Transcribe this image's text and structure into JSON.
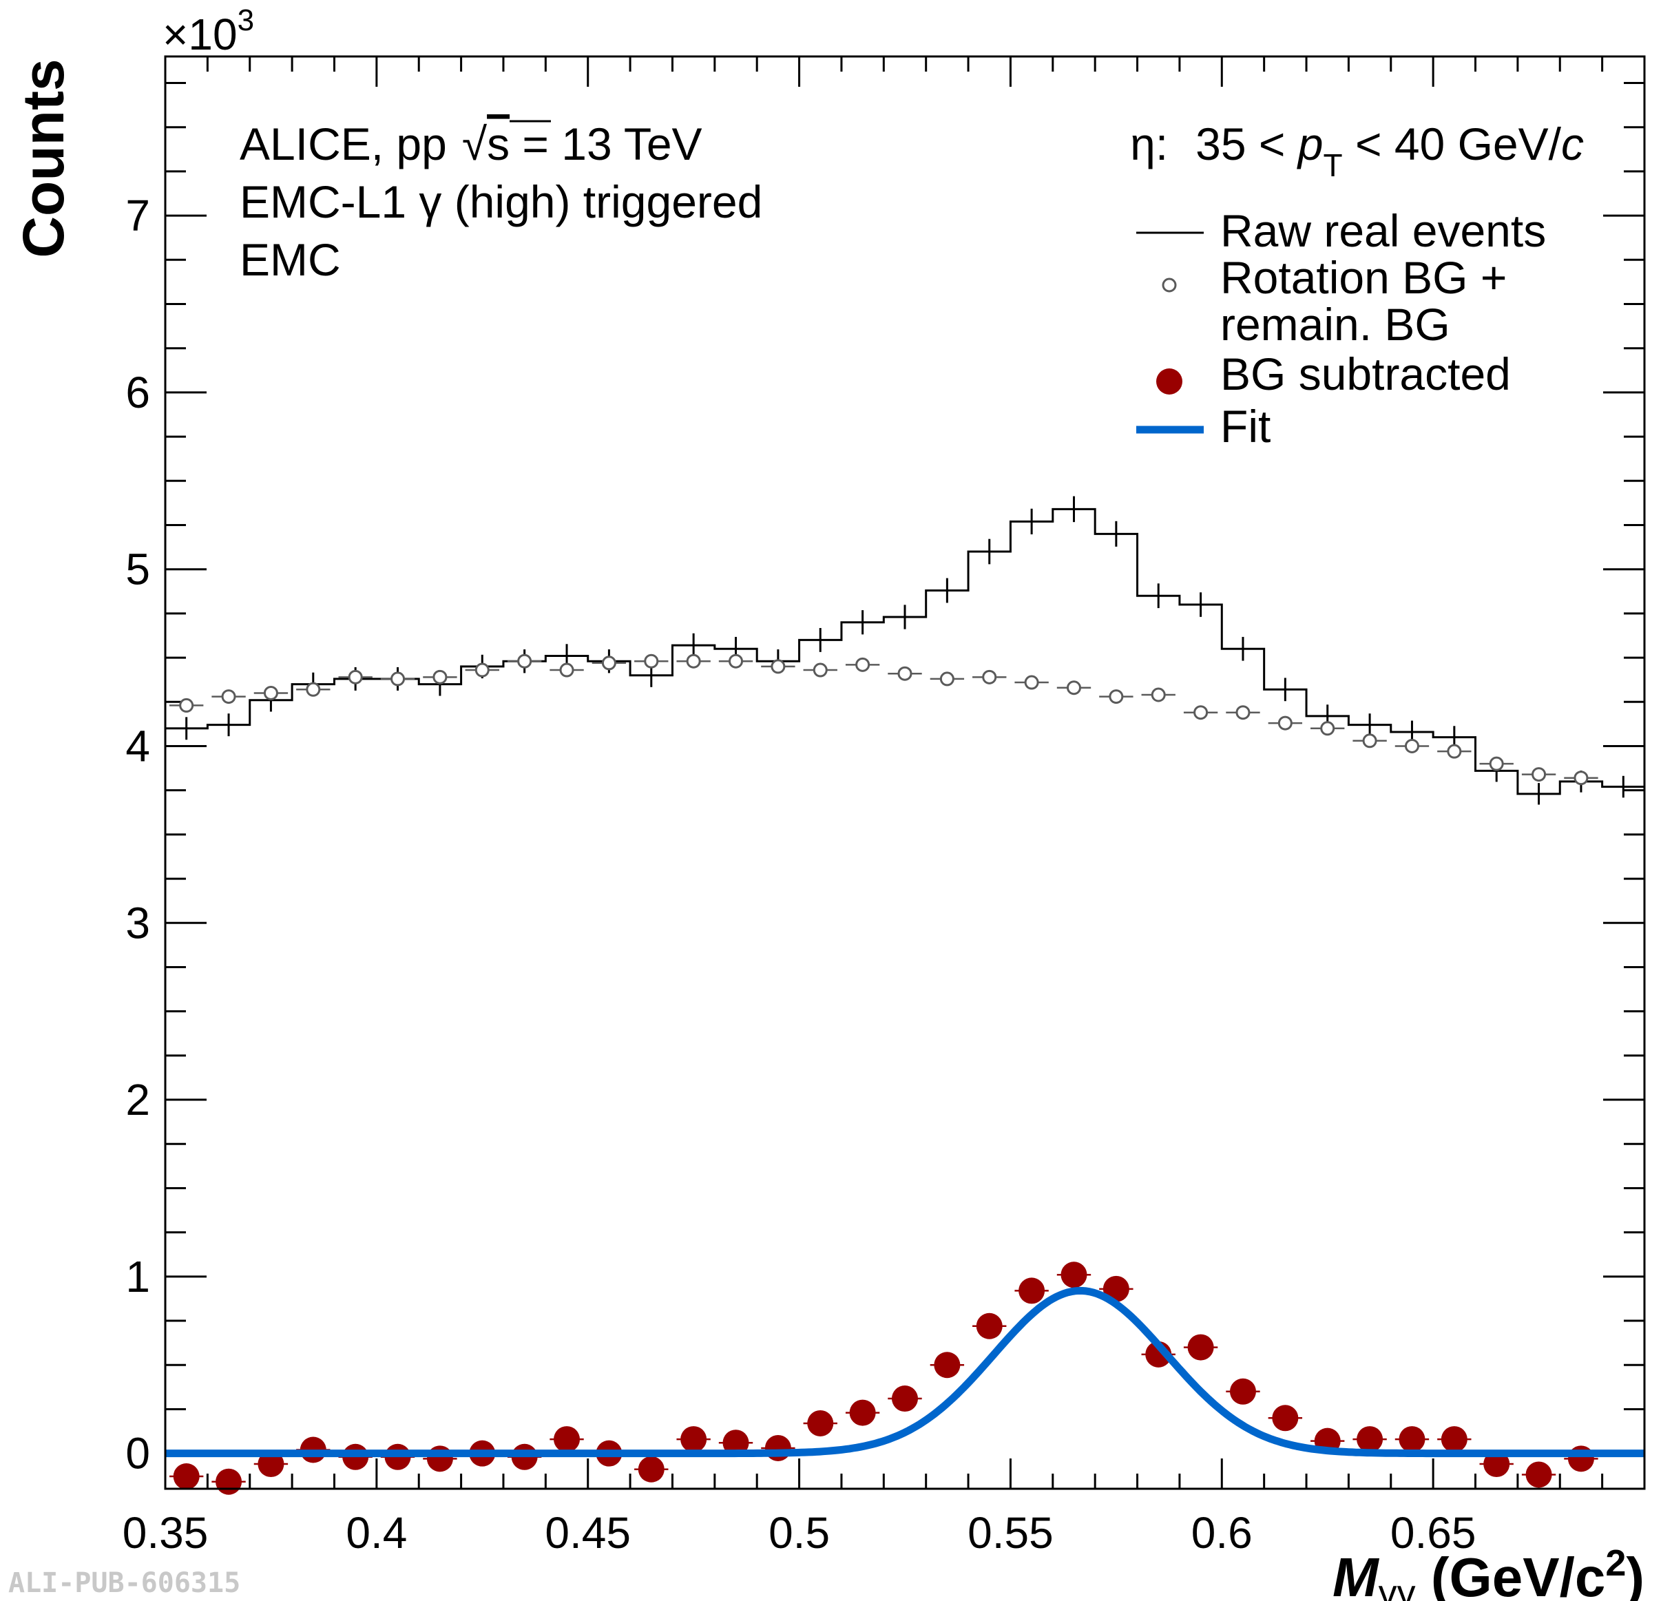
{
  "chart_data": {
    "type": "histogram",
    "x_axis": {
      "range": [
        0.35,
        0.7
      ],
      "ticks": [
        "0.35",
        "0.4",
        "0.45",
        "0.5",
        "0.55",
        "0.6",
        "0.65"
      ],
      "label": {
        "main": "M",
        "sub": "γγ",
        "unit": " (GeV/c",
        "sup": "2",
        "close": ")"
      }
    },
    "y_axis": {
      "range": [
        -0.2,
        7.9
      ],
      "ticks": [
        "0",
        "1",
        "2",
        "3",
        "4",
        "5",
        "6",
        "7"
      ],
      "label": "Counts",
      "multiplier": {
        "prefix": "×10",
        "exp": "3"
      }
    },
    "bin_width": 0.01,
    "bin_centers": [
      0.355,
      0.365,
      0.375,
      0.385,
      0.395,
      0.405,
      0.415,
      0.425,
      0.435,
      0.445,
      0.455,
      0.465,
      0.475,
      0.485,
      0.495,
      0.505,
      0.515,
      0.525,
      0.535,
      0.545,
      0.555,
      0.565,
      0.575,
      0.585,
      0.595,
      0.605,
      0.615,
      0.625,
      0.635,
      0.645,
      0.655,
      0.665,
      0.675,
      0.685,
      0.695
    ],
    "series": [
      {
        "name": "Raw real events",
        "style": "histogram",
        "color": "#000000",
        "values": [
          4.1,
          4.12,
          4.26,
          4.35,
          4.38,
          4.38,
          4.35,
          4.45,
          4.48,
          4.51,
          4.48,
          4.4,
          4.57,
          4.55,
          4.48,
          4.6,
          4.7,
          4.73,
          4.88,
          5.1,
          5.27,
          5.34,
          5.2,
          4.85,
          4.8,
          4.55,
          4.32,
          4.17,
          4.12,
          4.08,
          4.05,
          3.86,
          3.73,
          3.8,
          3.77
        ]
      },
      {
        "name": "Rotation BG + remain. BG",
        "style": "open-circle",
        "color": "#5a5a5a",
        "values": [
          4.23,
          4.28,
          4.3,
          4.32,
          4.39,
          4.38,
          4.39,
          4.43,
          4.48,
          4.43,
          4.47,
          4.48,
          4.48,
          4.48,
          4.45,
          4.43,
          4.46,
          4.41,
          4.38,
          4.39,
          4.36,
          4.33,
          4.28,
          4.29,
          4.19,
          4.19,
          4.13,
          4.1,
          4.03,
          4.0,
          3.97,
          3.9,
          3.84,
          3.82,
          null
        ]
      },
      {
        "name": "BG subtracted",
        "style": "filled-circle",
        "color": "#990000",
        "values": [
          -0.13,
          -0.16,
          -0.06,
          0.02,
          -0.02,
          -0.02,
          -0.03,
          0.0,
          -0.02,
          0.08,
          0.0,
          -0.09,
          0.08,
          0.06,
          0.03,
          0.17,
          0.23,
          0.31,
          0.5,
          0.72,
          0.92,
          1.01,
          0.93,
          0.56,
          0.6,
          0.35,
          0.2,
          0.07,
          0.08,
          0.08,
          0.08,
          -0.06,
          -0.12,
          -0.03,
          null
        ]
      },
      {
        "name": "Fit",
        "style": "line",
        "color": "#0066cc",
        "function": {
          "amplitude": 0.92,
          "mean": 0.5665,
          "sigma": 0.0205,
          "baseline": 0.0
        }
      }
    ],
    "annotations": {
      "left": [
        "ALICE, pp",
        "√",
        "s",
        " = 13 TeV",
        "EMC-L1 γ (high) triggered",
        "EMC"
      ],
      "right": {
        "particle": "η:",
        "range_lo": "35 < ",
        "pt": "p",
        "pt_sub": "T",
        "range_hi": " <  40 GeV/",
        "c": "c"
      }
    },
    "legend_position": "top-right",
    "watermark": "ALI-PUB-606315"
  }
}
